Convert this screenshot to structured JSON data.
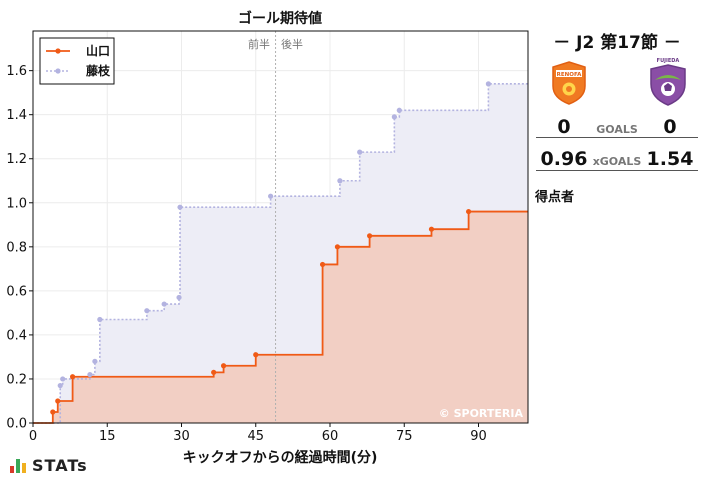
{
  "chart_data": {
    "type": "line",
    "title": "ゴール期待値",
    "xlabel": "キックオフからの経過時間(分)",
    "ylabel": "",
    "xlim": [
      0,
      100
    ],
    "ylim": [
      0,
      1.78
    ],
    "xticks": [
      0,
      15,
      30,
      45,
      60,
      75,
      90
    ],
    "yticks": [
      0.0,
      0.2,
      0.4,
      0.6,
      0.8,
      1.0,
      1.2,
      1.4,
      1.6
    ],
    "half_time_label": "前半　後半",
    "half_time_minute": 49,
    "watermark": "© SPORTERIA",
    "grid": true,
    "legend_position": "top-left",
    "series": [
      {
        "name": "山口",
        "style": "solid",
        "color": "#f05a16",
        "fill": "#f2cfc4",
        "points": [
          [
            4,
            0.05
          ],
          [
            5,
            0.1
          ],
          [
            8,
            0.21
          ],
          [
            36.5,
            0.23
          ],
          [
            38.5,
            0.26
          ],
          [
            45,
            0.31
          ],
          [
            58.5,
            0.72
          ],
          [
            61.5,
            0.8
          ],
          [
            68,
            0.85
          ],
          [
            80.5,
            0.88
          ],
          [
            88,
            0.96
          ],
          [
            100,
            0.96
          ]
        ]
      },
      {
        "name": "藤枝",
        "style": "dotted",
        "color": "#b3b3e0",
        "fill": "#ededf6",
        "points": [
          [
            5.5,
            0.17
          ],
          [
            6,
            0.2
          ],
          [
            11.5,
            0.22
          ],
          [
            12.5,
            0.28
          ],
          [
            13.5,
            0.47
          ],
          [
            23,
            0.51
          ],
          [
            26.5,
            0.54
          ],
          [
            29.5,
            0.57
          ],
          [
            29.7,
            0.98
          ],
          [
            48,
            1.03
          ],
          [
            62,
            1.1
          ],
          [
            66,
            1.23
          ],
          [
            73,
            1.39
          ],
          [
            74,
            1.42
          ],
          [
            92,
            1.54
          ],
          [
            100,
            1.54
          ]
        ]
      }
    ]
  },
  "match": {
    "title": "－ J2 第17節 －",
    "home_score": "0",
    "away_score": "0",
    "goals_label": "GOALS",
    "home_xg": "0.96",
    "away_xg": "1.54",
    "xgoals_label": "xGOALS",
    "scorers_label": "得点者"
  },
  "badges": {
    "home_text": "RENOFA",
    "away_text": "FUJIEDA"
  },
  "brand": {
    "name": "STATs",
    "colors": [
      "#d83a2a",
      "#3aa858",
      "#f0b020"
    ]
  }
}
